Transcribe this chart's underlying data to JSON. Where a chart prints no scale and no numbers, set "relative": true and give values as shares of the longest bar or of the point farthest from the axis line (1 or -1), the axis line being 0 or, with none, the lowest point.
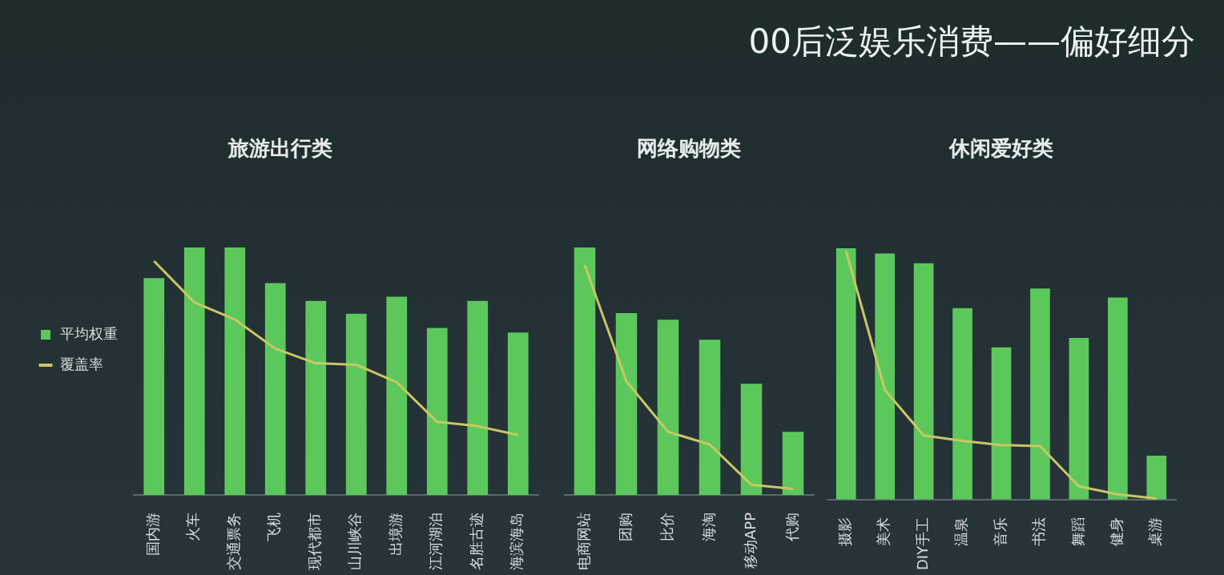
{
  "chart_data": [
    {
      "type": "bar",
      "title": "旅游出行类",
      "annotations": [
        "00后泛娱乐消费——偏好细分"
      ],
      "relative": true,
      "legend": "left",
      "marker": "none",
      "grid": false,
      "categories": [
        "国内游",
        "火车",
        "交通票务",
        "飞机",
        "现代都市",
        "山川峡谷",
        "出境游",
        "江河湖泊",
        "名胜古迹",
        "海滨海岛"
      ],
      "series": [
        {
          "name": "平均权重",
          "color": "#5cc85c",
          "values": [
            0.876,
            1,
            1,
            0.856,
            0.784,
            0.732,
            0.801,
            0.675,
            0.784,
            0.656
          ]
        },
        {
          "name": "覆盖率",
          "type": "line",
          "color": "#c8c864",
          "values": [
            0.945,
            0.778,
            0.709,
            0.591,
            0.532,
            0.526,
            0.455,
            0.295,
            0.278,
            0.242
          ]
        }
      ]
    },
    {
      "type": "bar",
      "title": "网络购物类",
      "relative": true,
      "legend": false,
      "marker": "none",
      "grid": false,
      "categories": [
        "电商网站",
        "团购",
        "比价",
        "海淘",
        "移动APP",
        "代购"
      ],
      "series": [
        {
          "color": "#5cc85c",
          "values": [
            1,
            0.735,
            0.708,
            0.627,
            0.449,
            0.255
          ]
        },
        {
          "type": "line",
          "color": "#c8c864",
          "values": [
            0.929,
            0.459,
            0.255,
            0.204,
            0.041,
            0.024
          ]
        }
      ]
    },
    {
      "type": "bar",
      "title": "休闲爱好类",
      "relative": true,
      "legend": false,
      "marker": "none",
      "grid": false,
      "categories": [
        "摄影",
        "美术",
        "DIY手工",
        "温泉",
        "音乐",
        "书法",
        "舞蹈",
        "健身",
        "桌游"
      ],
      "series": [
        {
          "color": "#5cc85c",
          "values": [
            1,
            0.979,
            0.94,
            0.762,
            0.606,
            0.84,
            0.643,
            0.804,
            0.175
          ]
        },
        {
          "type": "line",
          "color": "#c8c864",
          "values": [
            0.989,
            0.436,
            0.255,
            0.234,
            0.217,
            0.213,
            0.053,
            0.021,
            0.004
          ]
        }
      ]
    }
  ]
}
